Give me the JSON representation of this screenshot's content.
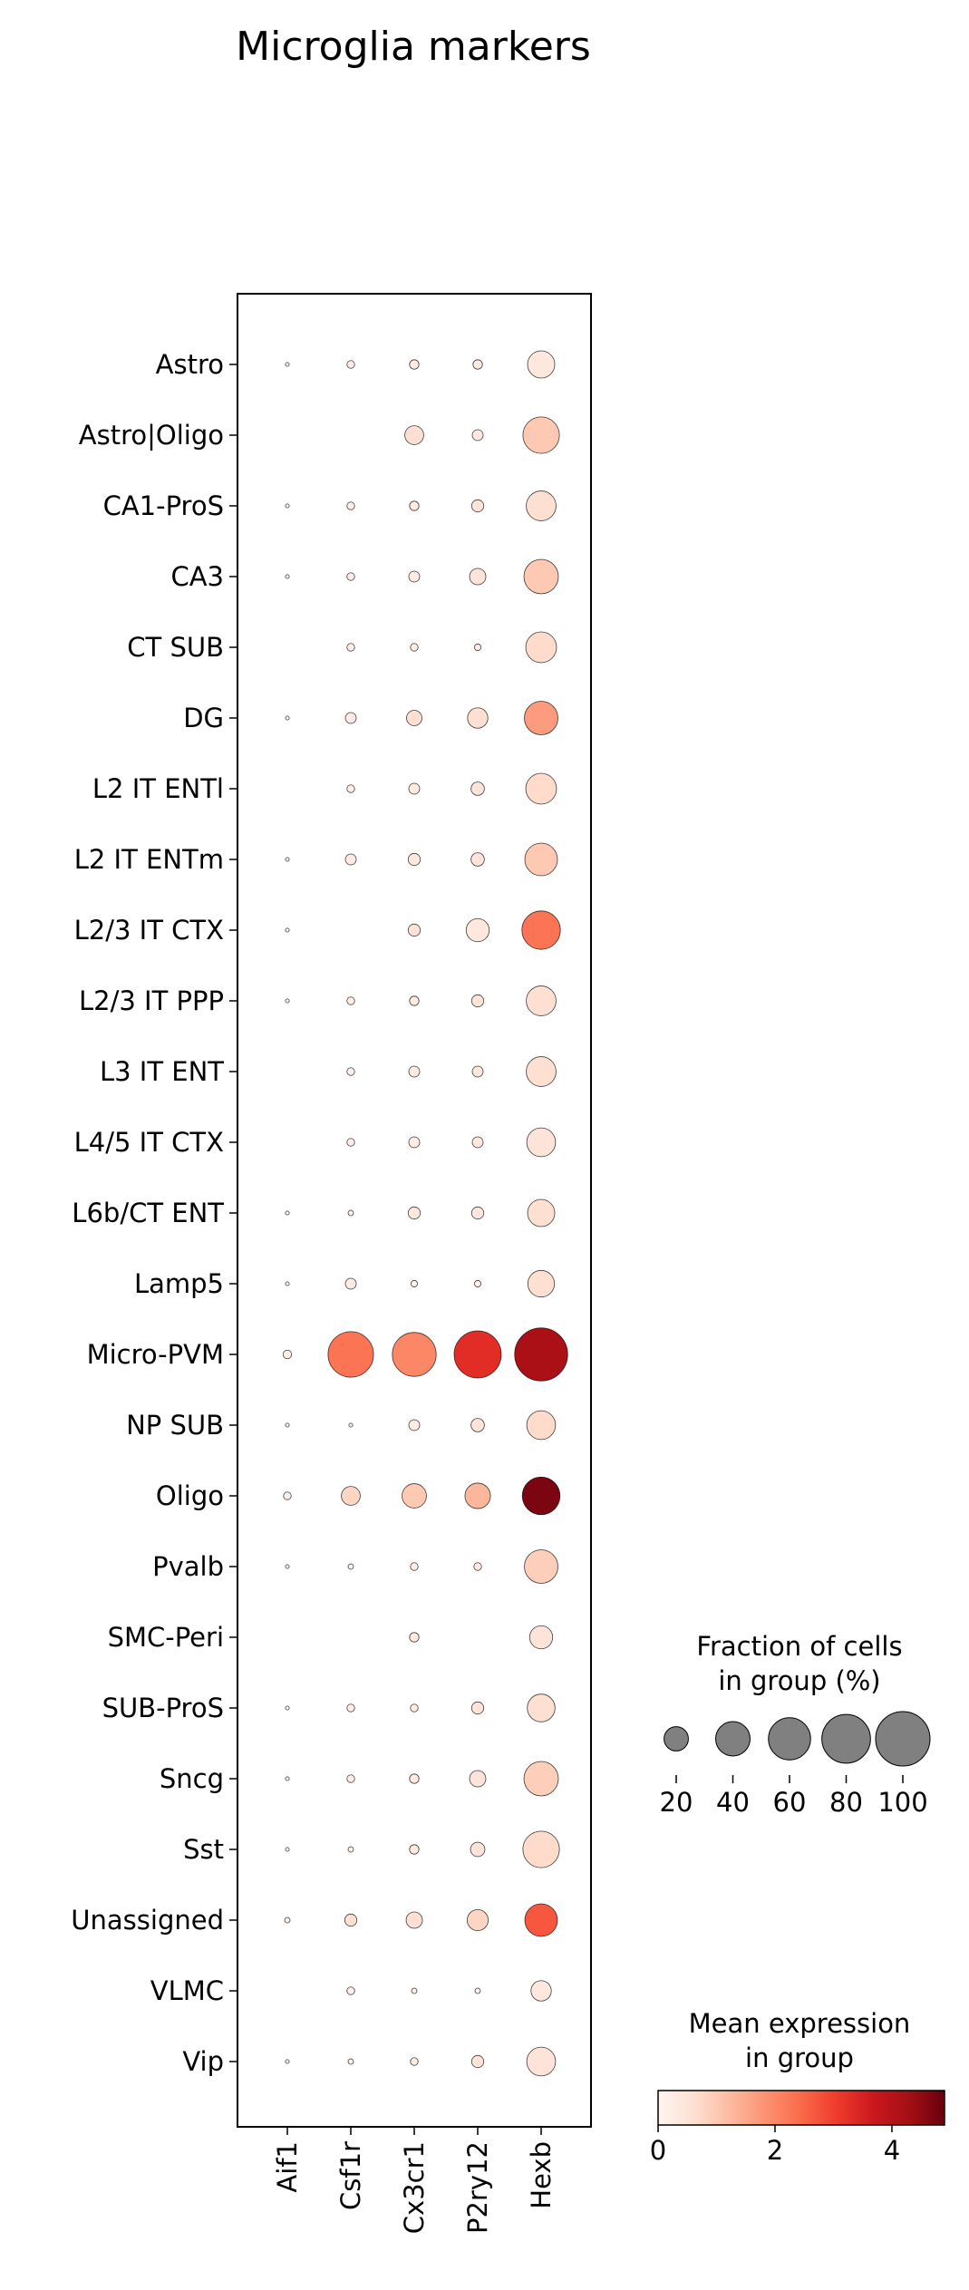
{
  "chart_data": {
    "type": "dotplot",
    "title": "Microglia markers",
    "genes": [
      "Aif1",
      "Csf1r",
      "Cx3cr1",
      "P2ry12",
      "Hexb"
    ],
    "groups": [
      "Astro",
      "Astro|Oligo",
      "CA1-ProS",
      "CA3",
      "CT SUB",
      "DG",
      "L2 IT ENTl",
      "L2 IT ENTm",
      "L2/3 IT CTX",
      "L2/3 IT PPP",
      "L3 IT ENT",
      "L4/5 IT CTX",
      "L6b/CT ENT",
      "Lamp5",
      "Micro-PVM",
      "NP SUB",
      "Oligo",
      "Pvalb",
      "SMC-Peri",
      "SUB-ProS",
      "Sncg",
      "Sst",
      "Unassigned",
      "VLMC",
      "Vip"
    ],
    "fraction_percent": [
      [
        0.5,
        2,
        3,
        3,
        25
      ],
      [
        0,
        0,
        12,
        4,
        45
      ],
      [
        0.5,
        2,
        3,
        5,
        30
      ],
      [
        0.5,
        2,
        4,
        9,
        40
      ],
      [
        0,
        2,
        2,
        1.5,
        32
      ],
      [
        0.5,
        4,
        8,
        14,
        38
      ],
      [
        0,
        2,
        4,
        6,
        32
      ],
      [
        0.5,
        4,
        5,
        6,
        36
      ],
      [
        0.5,
        0,
        5,
        18,
        50
      ],
      [
        0.5,
        2,
        3,
        5,
        30
      ],
      [
        0,
        2,
        4,
        4,
        30
      ],
      [
        0,
        2,
        4,
        4,
        28
      ],
      [
        0.5,
        1,
        5,
        5,
        25
      ],
      [
        0.5,
        4,
        1.5,
        1.5,
        24
      ],
      [
        2.5,
        70,
        65,
        75,
        95
      ],
      [
        0.5,
        0.5,
        4,
        6,
        28
      ],
      [
        2,
        12,
        20,
        22,
        48
      ],
      [
        0.5,
        1,
        2,
        2,
        38
      ],
      [
        0,
        0,
        3,
        0,
        18
      ],
      [
        0.5,
        2,
        2,
        5,
        26
      ],
      [
        0.5,
        2,
        3,
        9,
        40
      ],
      [
        0.5,
        1,
        3,
        7,
        45
      ],
      [
        1,
        5,
        9,
        15,
        36
      ],
      [
        0,
        2,
        1,
        1,
        14
      ],
      [
        0.5,
        1,
        2,
        5,
        28
      ]
    ],
    "mean_expression": [
      [
        0.1,
        0.2,
        0.3,
        0.3,
        0.4
      ],
      [
        0,
        0,
        0.6,
        0.3,
        1.0
      ],
      [
        0.1,
        0.2,
        0.3,
        0.5,
        0.6
      ],
      [
        0.1,
        0.2,
        0.3,
        0.5,
        1.0
      ],
      [
        0,
        0.2,
        0.3,
        0.3,
        0.7
      ],
      [
        0.1,
        0.3,
        0.6,
        0.6,
        1.7
      ],
      [
        0,
        0.2,
        0.3,
        0.5,
        0.7
      ],
      [
        0.1,
        0.3,
        0.4,
        0.5,
        1.0
      ],
      [
        0.1,
        0,
        0.5,
        0.4,
        2.3
      ],
      [
        0.1,
        0.2,
        0.3,
        0.5,
        0.6
      ],
      [
        0,
        0.2,
        0.3,
        0.4,
        0.6
      ],
      [
        0,
        0.2,
        0.3,
        0.4,
        0.5
      ],
      [
        0.1,
        0.2,
        0.4,
        0.4,
        0.6
      ],
      [
        0.1,
        0.3,
        0.2,
        0.2,
        0.6
      ],
      [
        0.2,
        2.3,
        2.0,
        3.3,
        4.2
      ],
      [
        0.1,
        0.2,
        0.3,
        0.5,
        0.7
      ],
      [
        0.2,
        0.8,
        1.0,
        1.3,
        4.7
      ],
      [
        0.1,
        0.2,
        0.2,
        0.3,
        0.9
      ],
      [
        0,
        0,
        0.3,
        0,
        0.5
      ],
      [
        0.1,
        0.2,
        0.3,
        0.5,
        0.6
      ],
      [
        0.1,
        0.2,
        0.3,
        0.5,
        0.9
      ],
      [
        0.1,
        0.2,
        0.3,
        0.5,
        0.7
      ],
      [
        0.1,
        0.6,
        0.6,
        0.8,
        2.7
      ],
      [
        0,
        0.2,
        0.2,
        0.2,
        0.4
      ],
      [
        0.1,
        0.2,
        0.3,
        0.5,
        0.5
      ]
    ],
    "size_legend": {
      "title_line1": "Fraction of cells",
      "title_line2": "in group (%)",
      "values": [
        20,
        40,
        60,
        80,
        100
      ],
      "tick_labels": [
        "20",
        "40",
        "60",
        "80",
        "100"
      ]
    },
    "color_legend": {
      "title_line1": "Mean expression",
      "title_line2": "in group",
      "range": [
        0,
        4.9
      ],
      "ticks": [
        0,
        2,
        4
      ],
      "tick_labels": [
        "0",
        "2",
        "4"
      ],
      "colormap": "Reds",
      "stops": [
        "#fff5f0",
        "#fee0d2",
        "#fcbba1",
        "#fc9272",
        "#fb6a4a",
        "#ef3b2c",
        "#cb181d",
        "#a50f15",
        "#67000d"
      ]
    }
  }
}
